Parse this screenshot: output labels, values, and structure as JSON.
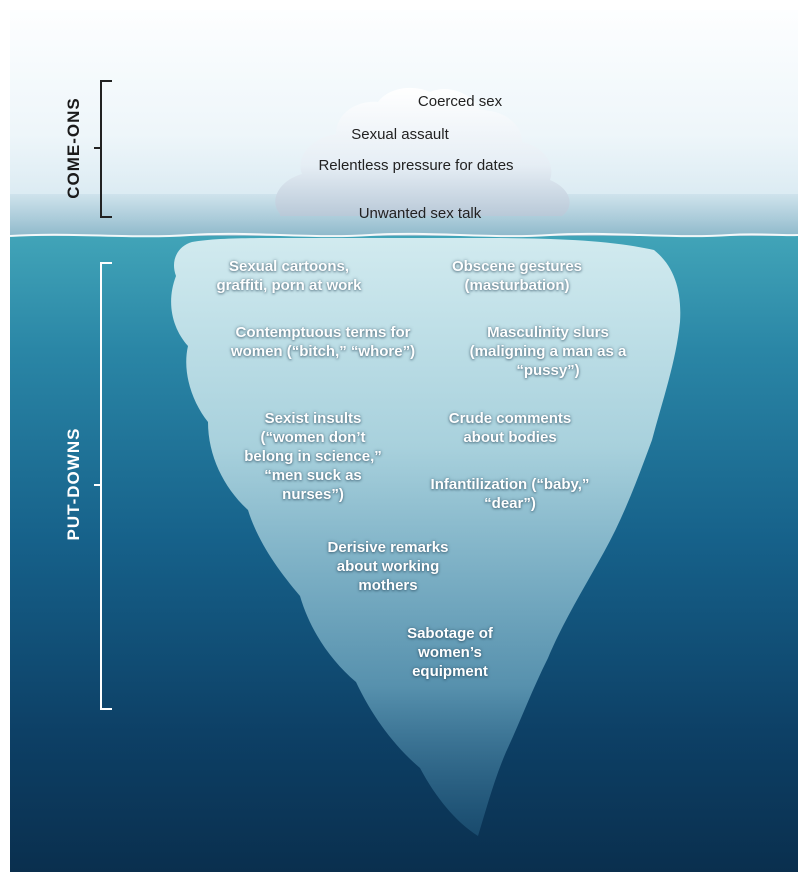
{
  "sections": {
    "above": {
      "label": "COME-ONS"
    },
    "below": {
      "label": "PUT-DOWNS"
    }
  },
  "above_items": [
    "Coerced sex",
    "Sexual assault",
    "Relentless pressure for dates",
    "Unwanted sex talk"
  ],
  "below_items": [
    "Sexual cartoons, graffiti, porn at work",
    "Obscene gestures (masturbation)",
    "Contemptuous terms for women (“bitch,” “whore”)",
    "Masculinity slurs (maligning a man as a “pussy”)",
    "Sexist insults (“women don’t belong in science,” “men suck as nurses”)",
    "Crude comments about bodies",
    "Infantilization (“baby,” “dear”)",
    "Derisive remarks about working mothers",
    "Sabotage of women’s equipment"
  ],
  "colors": {
    "above_label": "#1a1a1a",
    "below_label": "#ffffff",
    "water_top": "#41a4b8",
    "water_bottom": "#0a2f4e"
  }
}
